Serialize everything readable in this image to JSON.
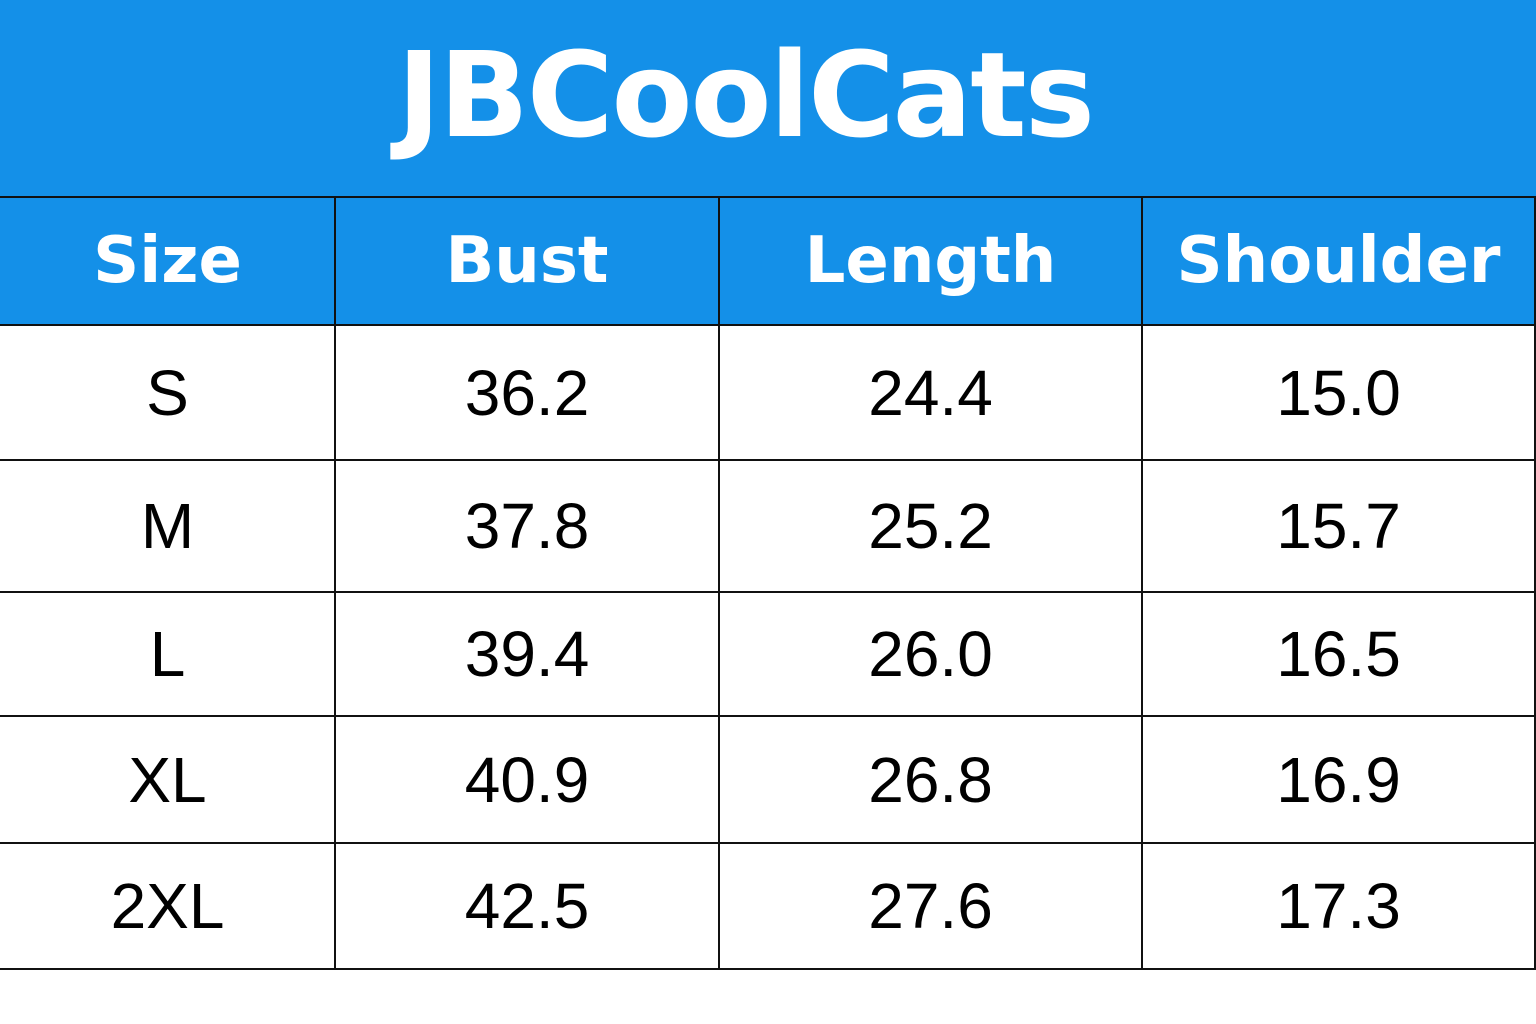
{
  "header": {
    "title": "JBCoolCats"
  },
  "table": {
    "columns": [
      "Size",
      "Bust",
      "Length",
      "Shoulder"
    ],
    "rows": [
      [
        "S",
        "36.2",
        "24.4",
        "15.0"
      ],
      [
        "M",
        "37.8",
        "25.2",
        "15.7"
      ],
      [
        "L",
        "39.4",
        "26.0",
        "16.5"
      ],
      [
        "XL",
        "40.9",
        "26.8",
        "16.9"
      ],
      [
        "2XL",
        "42.5",
        "27.6",
        "17.3"
      ]
    ]
  }
}
